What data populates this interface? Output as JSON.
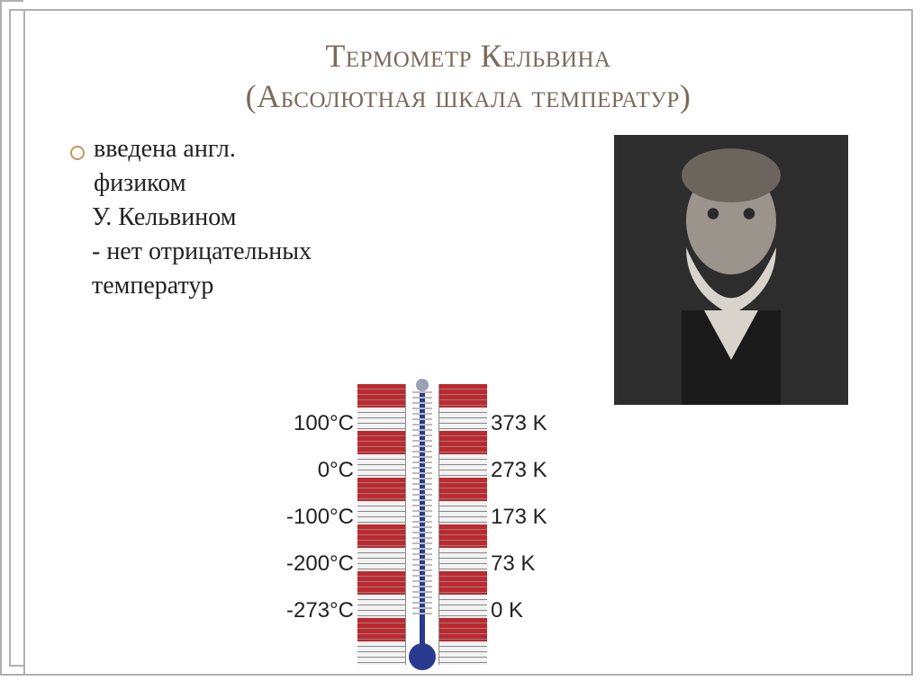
{
  "title": {
    "line1": "Термометр Кельвина",
    "line2": "(Абсолютная шкала температур)",
    "color": "#7a6a5a",
    "fontsize": 36
  },
  "body": {
    "bullet_color": "#c09760",
    "text_color": "#222222",
    "fontsize": 28,
    "lines": {
      "l1": "введена англ.",
      "l2": "физиком",
      "l3": "У. Кельвином",
      "l4": "- нет отрицательных",
      "l5": "температур"
    }
  },
  "portrait": {
    "alt": "У. Кельвин (портрет)"
  },
  "diagram": {
    "label_color": "#222222",
    "label_fontsize": 24,
    "scale_red": "#c1272d",
    "scale_white": "#f2f2f2",
    "scale_stroke": "#888888",
    "therm_fill": "#2a3a8f",
    "therm_top": "#9aa0b8",
    "celsius": {
      "r0": "100°C",
      "r1": "0°C",
      "r2": "-100°C",
      "r3": "-200°C",
      "r4": "-273°C"
    },
    "kelvin": {
      "r0": "373 K",
      "r1": "273 K",
      "r2": "173 K",
      "r3": "73 K",
      "r4": "0 K"
    }
  }
}
